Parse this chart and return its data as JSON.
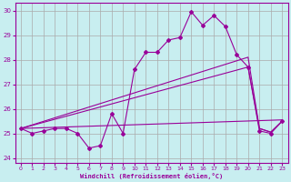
{
  "xlabel": "Windchill (Refroidissement éolien,°C)",
  "background_color": "#c8eef0",
  "grid_color": "#aaaaaa",
  "line_color": "#990099",
  "x": [
    0,
    1,
    2,
    3,
    4,
    5,
    6,
    7,
    8,
    9,
    10,
    11,
    12,
    13,
    14,
    15,
    16,
    17,
    18,
    19,
    20,
    21,
    22,
    23
  ],
  "y_actual": [
    25.2,
    25.0,
    25.1,
    25.2,
    25.2,
    25.0,
    24.4,
    24.5,
    25.8,
    25.0,
    27.6,
    28.3,
    28.3,
    28.8,
    28.9,
    29.95,
    29.4,
    29.8,
    29.35,
    28.2,
    27.7,
    25.1,
    25.0,
    25.5
  ],
  "line1_x": [
    0,
    20,
    21,
    22,
    23
  ],
  "line1_y": [
    25.2,
    28.1,
    25.2,
    25.05,
    25.5
  ],
  "line2_x": [
    0,
    20,
    21,
    22,
    23
  ],
  "line2_y": [
    25.2,
    27.7,
    25.2,
    25.05,
    25.5
  ],
  "line3_x": [
    0,
    23
  ],
  "line3_y": [
    25.2,
    25.55
  ],
  "ylim": [
    23.8,
    30.3
  ],
  "yticks": [
    24,
    25,
    26,
    27,
    28,
    29,
    30
  ],
  "xticks": [
    0,
    1,
    2,
    3,
    4,
    5,
    6,
    7,
    8,
    9,
    10,
    11,
    12,
    13,
    14,
    15,
    16,
    17,
    18,
    19,
    20,
    21,
    22,
    23
  ]
}
